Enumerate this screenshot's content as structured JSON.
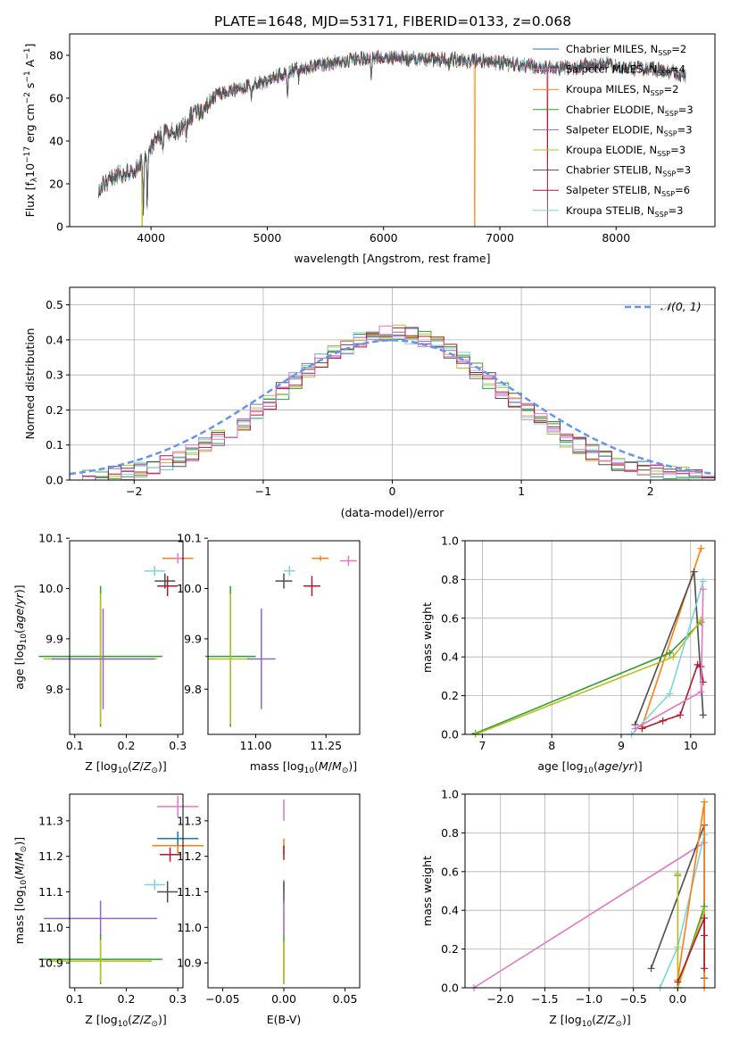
{
  "figure": {
    "title": "PLATE=1648, MJD=53171, FIBERID=0133, z=0.068"
  },
  "colors": {
    "Chabrier MILES": "#1f77b4",
    "Salpeter MILES": "#e377c2",
    "Kroupa MILES": "#ff7f0e",
    "Chabrier ELODIE": "#2ca02c",
    "Salpeter ELODIE": "#9467bd",
    "Kroupa ELODIE": "#bcbd22",
    "Chabrier STELIB": "#4d4d4d",
    "Salpeter STELIB": "#b2182b",
    "Kroupa STELIB": "#7fd3dd",
    "normal_curve": "#6495ed"
  },
  "chart_data": [
    {
      "id": "spectrum",
      "type": "line",
      "xlabel": "wavelength [Angstrom, rest frame]",
      "ylabel": "Flux [f_λ10^-17 erg cm^-2 s^-1 A^-1]",
      "xlim": [
        3300,
        8850
      ],
      "ylim": [
        0,
        90
      ],
      "xticks": [
        4000,
        5000,
        6000,
        7000,
        8000
      ],
      "yticks": [
        0,
        20,
        40,
        60,
        80
      ],
      "legend_position": "top-right",
      "legend": [
        {
          "label": "Chabrier MILES, N_SSP=2",
          "base": "Chabrier MILES, N",
          "sub": "SSP",
          "tail": "=2"
        },
        {
          "label": "Salpeter MILES, N_SSP=4",
          "base": "Salpeter MILES, N",
          "sub": "SSP",
          "tail": "=4"
        },
        {
          "label": "Kroupa MILES, N_SSP=2",
          "base": "Kroupa MILES, N",
          "sub": "SSP",
          "tail": "=2"
        },
        {
          "label": "Chabrier ELODIE, N_SSP=3",
          "base": "Chabrier ELODIE, N",
          "sub": "SSP",
          "tail": "=3"
        },
        {
          "label": "Salpeter ELODIE, N_SSP=3",
          "base": "Salpeter ELODIE, N",
          "sub": "SSP",
          "tail": "=3"
        },
        {
          "label": "Kroupa ELODIE, N_SSP=3",
          "base": "Kroupa ELODIE, N",
          "sub": "SSP",
          "tail": "=3"
        },
        {
          "label": "Chabrier STELIB, N_SSP=3",
          "base": "Chabrier STELIB, N",
          "sub": "SSP",
          "tail": "=3"
        },
        {
          "label": "Salpeter STELIB, N_SSP=6",
          "base": "Salpeter STELIB, N",
          "sub": "SSP",
          "tail": "=6"
        },
        {
          "label": "Kroupa STELIB, N_SSP=3",
          "base": "Kroupa STELIB, N",
          "sub": "SSP",
          "tail": "=3"
        }
      ],
      "continuum": {
        "x": [
          3550,
          3700,
          3850,
          3950,
          4050,
          4150,
          4250,
          4350,
          4450,
          4550,
          4700,
          4850,
          5000,
          5150,
          5300,
          5500,
          5700,
          5900,
          6100,
          6300,
          6500,
          6700,
          6900,
          7100,
          7300,
          7500,
          7700,
          7900,
          8100,
          8300,
          8500,
          8600
        ],
        "y": [
          18,
          24,
          25,
          33,
          42,
          44,
          45,
          52,
          55,
          61,
          64,
          66,
          68,
          72,
          74,
          76,
          78,
          79,
          79,
          78,
          78,
          78,
          77,
          76,
          75,
          74,
          75,
          76,
          74,
          74,
          72,
          70
        ]
      },
      "absorption_lines": [
        [
          3934,
          22
        ],
        [
          3968,
          25
        ],
        [
          4102,
          6
        ],
        [
          4304,
          8
        ],
        [
          4861,
          6
        ],
        [
          5175,
          12
        ],
        [
          5270,
          5
        ],
        [
          5893,
          9
        ],
        [
          6563,
          4
        ],
        [
          6717,
          3
        ]
      ],
      "spikes_to_zero": [
        3925,
        6785,
        7410
      ]
    },
    {
      "id": "residuals",
      "type": "histogram",
      "xlabel": "(data-model)/error",
      "ylabel": "Normed distribution",
      "xlim": [
        -2.5,
        2.5
      ],
      "ylim": [
        0,
        0.55
      ],
      "xticks": [
        -2,
        -1,
        0,
        1,
        2
      ],
      "yticks": [
        0.0,
        0.1,
        0.2,
        0.3,
        0.4,
        0.5
      ],
      "grid": true,
      "legend_position": "top-right",
      "legend_label": "𝒩(0, 1)",
      "bin_edges_range": [
        -2.5,
        2.5
      ],
      "n_bins": 50
    },
    {
      "id": "age_vs_Z",
      "type": "scatter",
      "xlabel": "Z [log10(Z/Z⊙)]",
      "ylabel": "age [log10(age/yr)]",
      "xlim": [
        0.09,
        0.31
      ],
      "ylim": [
        9.71,
        10.095
      ],
      "xticks": [
        0.1,
        0.2,
        0.3
      ],
      "yticks": [
        9.8,
        9.9,
        10.0,
        10.1
      ],
      "points": [
        {
          "model": "Kroupa MILES",
          "x": 0.3,
          "y": 10.06,
          "xerr": 0.03,
          "yerr": 0.005
        },
        {
          "model": "Salpeter MILES",
          "x": 0.3,
          "y": 10.06,
          "xerr": 0.005,
          "yerr": 0.01
        },
        {
          "model": "Kroupa STELIB",
          "x": 0.255,
          "y": 10.035,
          "xerr": 0.02,
          "yerr": 0.01
        },
        {
          "model": "Chabrier STELIB",
          "x": 0.275,
          "y": 10.015,
          "xerr": 0.02,
          "yerr": 0.015
        },
        {
          "model": "Salpeter STELIB",
          "x": 0.28,
          "y": 10.005,
          "xerr": 0.02,
          "yerr": 0.02
        },
        {
          "model": "Chabrier ELODIE",
          "x": 0.15,
          "y": 9.865,
          "xerr": 0.12,
          "yerr": 0.14
        },
        {
          "model": "Kroupa ELODIE",
          "x": 0.15,
          "y": 9.86,
          "xerr": 0.11,
          "yerr": 0.13
        },
        {
          "model": "Salpeter ELODIE",
          "x": 0.155,
          "y": 9.86,
          "xerr": 0.1,
          "yerr": 0.1
        }
      ]
    },
    {
      "id": "age_vs_mass",
      "type": "scatter",
      "xlabel": "mass [log10(M/M⊙)]",
      "ylabel": "",
      "xlim": [
        10.83,
        11.37
      ],
      "ylim": [
        9.71,
        10.095
      ],
      "xticks": [
        11.0,
        11.25
      ],
      "yticks": [
        9.8,
        9.9,
        10.0,
        10.1
      ],
      "points": [
        {
          "model": "Kroupa MILES",
          "x": 11.23,
          "y": 10.06,
          "xerr": 0.03,
          "yerr": 0.005
        },
        {
          "model": "Salpeter MILES",
          "x": 11.33,
          "y": 10.055,
          "xerr": 0.03,
          "yerr": 0.01
        },
        {
          "model": "Kroupa STELIB",
          "x": 11.12,
          "y": 10.035,
          "xerr": 0.02,
          "yerr": 0.01
        },
        {
          "model": "Chabrier STELIB",
          "x": 11.1,
          "y": 10.015,
          "xerr": 0.03,
          "yerr": 0.015
        },
        {
          "model": "Salpeter STELIB",
          "x": 11.2,
          "y": 10.005,
          "xerr": 0.03,
          "yerr": 0.02
        },
        {
          "model": "Chabrier ELODIE",
          "x": 10.91,
          "y": 9.865,
          "xerr": 0.09,
          "yerr": 0.14
        },
        {
          "model": "Kroupa ELODIE",
          "x": 10.91,
          "y": 9.86,
          "xerr": 0.08,
          "yerr": 0.13
        },
        {
          "model": "Salpeter ELODIE",
          "x": 11.02,
          "y": 9.86,
          "xerr": 0.05,
          "yerr": 0.1
        }
      ]
    },
    {
      "id": "massweight_vs_age",
      "type": "line",
      "xlabel": "age [log10(age/yr)]",
      "ylabel": "mass weight",
      "xlim": [
        6.75,
        10.35
      ],
      "ylim": [
        0,
        1.0
      ],
      "xticks": [
        7,
        8,
        9,
        10
      ],
      "yticks": [
        0.0,
        0.2,
        0.4,
        0.6,
        0.8,
        1.0
      ],
      "grid": true,
      "series": [
        {
          "model": "Kroupa MILES",
          "x": [
            9.3,
            10.15
          ],
          "y": [
            0.04,
            0.96
          ]
        },
        {
          "model": "Chabrier STELIB",
          "x": [
            9.2,
            10.05,
            10.18
          ],
          "y": [
            0.05,
            0.84,
            0.1
          ]
        },
        {
          "model": "Chabrier ELODIE",
          "x": [
            6.9,
            9.7,
            10.15
          ],
          "y": [
            0.005,
            0.42,
            0.58
          ]
        },
        {
          "model": "Kroupa ELODIE",
          "x": [
            6.9,
            9.75,
            10.15
          ],
          "y": [
            0.0,
            0.4,
            0.59
          ]
        },
        {
          "model": "Kroupa STELIB",
          "x": [
            9.15,
            9.7,
            10.18
          ],
          "y": [
            0.0,
            0.21,
            0.79
          ]
        },
        {
          "model": "Salpeter STELIB",
          "x": [
            9.3,
            9.6,
            9.85,
            10.1,
            10.15,
            10.18
          ],
          "y": [
            0.03,
            0.07,
            0.1,
            0.36,
            0.35,
            0.27
          ]
        },
        {
          "model": "Salpeter MILES",
          "x": [
            9.2,
            10.15,
            10.18
          ],
          "y": [
            0.03,
            0.22,
            0.75
          ]
        }
      ]
    },
    {
      "id": "mass_vs_Z",
      "type": "scatter",
      "xlabel": "Z [log10(Z/Z⊙)]",
      "ylabel": "mass [log10(M/M⊙)]",
      "xlim": [
        0.09,
        0.31
      ],
      "ylim": [
        10.83,
        11.375
      ],
      "xticks": [
        0.1,
        0.2,
        0.3
      ],
      "yticks": [
        10.9,
        11.0,
        11.1,
        11.2,
        11.3
      ],
      "points": [
        {
          "model": "Salpeter MILES",
          "x": 0.3,
          "y": 11.34,
          "xerr": 0.04,
          "yerr": 0.03
        },
        {
          "model": "Kroupa MILES",
          "x": 0.3,
          "y": 11.23,
          "xerr": 0.05,
          "yerr": 0.02
        },
        {
          "model": "Chabrier MILES",
          "x": 0.3,
          "y": 11.25,
          "xerr": 0.04,
          "yerr": 0.02
        },
        {
          "model": "Salpeter STELIB",
          "x": 0.285,
          "y": 11.205,
          "xerr": 0.02,
          "yerr": 0.02
        },
        {
          "model": "Kroupa STELIB",
          "x": 0.255,
          "y": 11.12,
          "xerr": 0.02,
          "yerr": 0.015
        },
        {
          "model": "Chabrier STELIB",
          "x": 0.28,
          "y": 11.1,
          "xerr": 0.02,
          "yerr": 0.03
        },
        {
          "model": "Salpeter ELODIE",
          "x": 0.15,
          "y": 11.025,
          "xerr": 0.11,
          "yerr": 0.05
        },
        {
          "model": "Chabrier ELODIE",
          "x": 0.15,
          "y": 10.91,
          "xerr": 0.12,
          "yerr": 0.07
        },
        {
          "model": "Kroupa ELODIE",
          "x": 0.15,
          "y": 10.905,
          "xerr": 0.1,
          "yerr": 0.06
        }
      ]
    },
    {
      "id": "mass_vs_ebv",
      "type": "scatter",
      "xlabel": "E(B-V)",
      "ylabel": "",
      "xlim": [
        -0.062,
        0.062
      ],
      "ylim": [
        10.83,
        11.375
      ],
      "xticks": [
        -0.05,
        0.0,
        0.05
      ],
      "yticks": [
        10.9,
        11.0,
        11.1,
        11.2,
        11.3
      ],
      "points": [
        {
          "model": "Salpeter MILES",
          "x": 0.0,
          "y": 11.33,
          "xerr": 0.0005,
          "yerr": 0.03
        },
        {
          "model": "Kroupa MILES",
          "x": 0.0,
          "y": 11.23,
          "xerr": 0.0005,
          "yerr": 0.02
        },
        {
          "model": "Salpeter STELIB",
          "x": 0.0,
          "y": 11.21,
          "xerr": 0.0005,
          "yerr": 0.02
        },
        {
          "model": "Kroupa STELIB",
          "x": 0.0,
          "y": 11.12,
          "xerr": 0.0005,
          "yerr": 0.015
        },
        {
          "model": "Chabrier STELIB",
          "x": 0.0,
          "y": 11.1,
          "xerr": 0.0005,
          "yerr": 0.03
        },
        {
          "model": "Salpeter ELODIE",
          "x": 0.0,
          "y": 11.03,
          "xerr": 0.0005,
          "yerr": 0.05
        },
        {
          "model": "Chabrier ELODIE",
          "x": 0.0,
          "y": 10.91,
          "xerr": 0.0005,
          "yerr": 0.07
        },
        {
          "model": "Kroupa ELODIE",
          "x": 0.0,
          "y": 10.9,
          "xerr": 0.0005,
          "yerr": 0.06
        }
      ]
    },
    {
      "id": "massweight_vs_Z",
      "type": "line",
      "xlabel": "Z [log10(Z/Z⊙)]",
      "ylabel": "mass weight",
      "xlim": [
        -2.4,
        0.42
      ],
      "ylim": [
        0,
        1.0
      ],
      "xticks": [
        -2.0,
        -1.5,
        -1.0,
        -0.5,
        0.0
      ],
      "yticks": [
        0.0,
        0.2,
        0.4,
        0.6,
        0.8,
        1.0
      ],
      "grid": true,
      "series": [
        {
          "model": "Salpeter MILES",
          "x": [
            -2.3,
            0.3
          ],
          "y": [
            0.0,
            0.75
          ]
        },
        {
          "model": "Chabrier STELIB",
          "x": [
            -0.3,
            0.3,
            0.3
          ],
          "y": [
            0.1,
            0.84,
            0.05
          ]
        },
        {
          "model": "Kroupa STELIB",
          "x": [
            -0.2,
            0.0,
            0.3
          ],
          "y": [
            0.0,
            0.21,
            0.79
          ]
        },
        {
          "model": "Kroupa MILES",
          "x": [
            0.0,
            0.3,
            0.3
          ],
          "y": [
            0.04,
            0.96,
            0.0
          ]
        },
        {
          "model": "Chabrier ELODIE",
          "x": [
            0.0,
            0.0,
            0.3
          ],
          "y": [
            0.58,
            0.0,
            0.42
          ]
        },
        {
          "model": "Kroupa ELODIE",
          "x": [
            0.0,
            0.0,
            0.3
          ],
          "y": [
            0.59,
            0.0,
            0.4
          ]
        },
        {
          "model": "Salpeter STELIB",
          "x": [
            0.0,
            0.3,
            0.3,
            0.3
          ],
          "y": [
            0.03,
            0.36,
            0.27,
            0.1
          ]
        }
      ]
    }
  ]
}
